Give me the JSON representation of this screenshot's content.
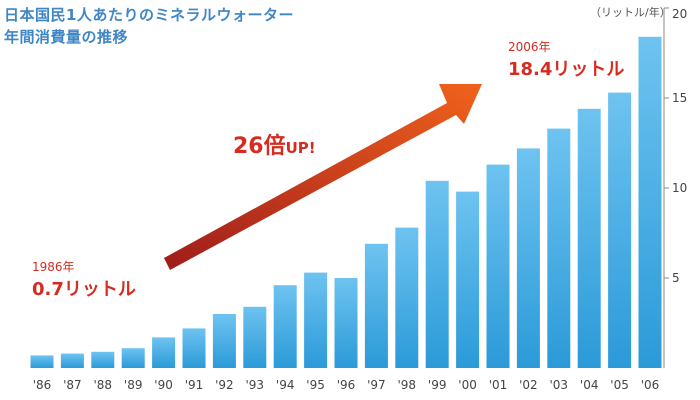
{
  "header": {
    "title_line1": "日本国民1人あたりのミネラルウォーター",
    "title_line2": "年間消費量の推移"
  },
  "annotations": {
    "start_year": "1986年",
    "start_value": "0.7リットル",
    "end_year": "2006年",
    "end_value": "18.4リットル",
    "multiplier_big": "26倍",
    "multiplier_small": "UP!"
  },
  "colors": {
    "bar_top": "#6ec3f0",
    "bar_bottom": "#2b9ad8",
    "title": "#3f86c6",
    "accent_red": "#d62b1e",
    "arrow_start": "#9e1c1c",
    "arrow_end": "#f0621c"
  },
  "chart_data": {
    "type": "bar",
    "title": "日本国民1人あたりのミネラルウォーター 年間消費量の推移",
    "unit_label": "（リットル/年）",
    "categories": [
      "'86",
      "'87",
      "'88",
      "'89",
      "'90",
      "'91",
      "'92",
      "'93",
      "'94",
      "'95",
      "'96",
      "'97",
      "'98",
      "'99",
      "'00",
      "'01",
      "'02",
      "'03",
      "'04",
      "'05",
      "'06"
    ],
    "values": [
      0.7,
      0.8,
      0.9,
      1.1,
      1.7,
      2.2,
      3.0,
      3.4,
      4.6,
      5.3,
      5.0,
      6.9,
      7.8,
      10.4,
      9.8,
      11.3,
      12.2,
      13.3,
      14.4,
      15.3,
      18.4
    ],
    "ylim": [
      0,
      20
    ],
    "yticks": [
      "5",
      "10",
      "15",
      "20"
    ],
    "ytick_values": [
      5,
      10,
      15,
      20
    ],
    "grid": false,
    "xlabel": "",
    "ylabel": ""
  }
}
